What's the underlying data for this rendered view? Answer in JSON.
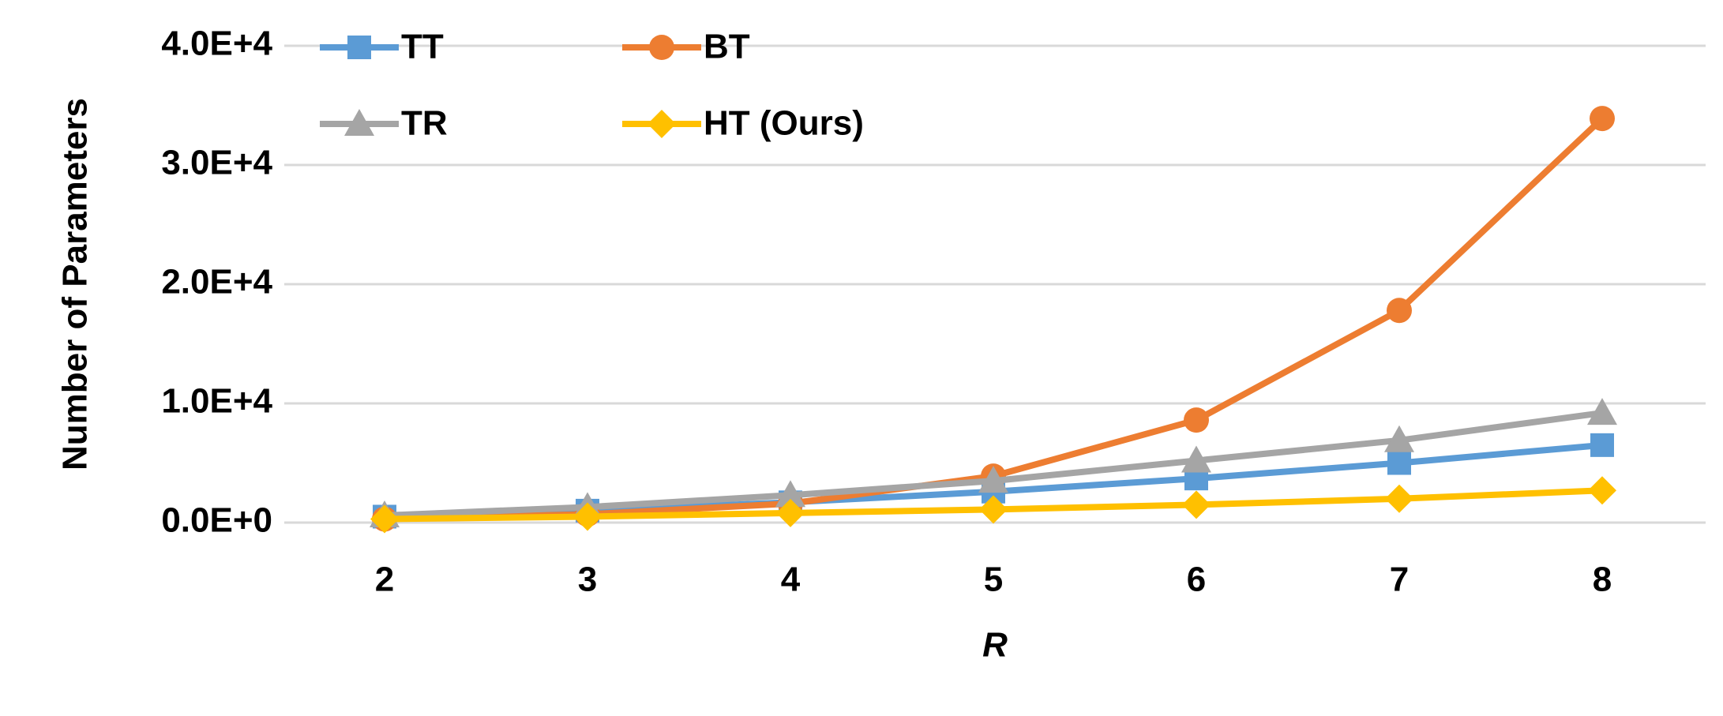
{
  "chart_data": {
    "type": "line",
    "xlabel": "R",
    "ylabel": "Number of Parameters",
    "categories": [
      "2",
      "3",
      "4",
      "5",
      "6",
      "7",
      "8"
    ],
    "series": [
      {
        "name": "TT",
        "color": "#5b9bd5",
        "marker": "square",
        "values": [
          500,
          1000,
          1700,
          2600,
          3700,
          5000,
          6500
        ]
      },
      {
        "name": "BT",
        "color": "#ed7d31",
        "marker": "circle",
        "values": [
          300,
          700,
          1600,
          3900,
          8600,
          17800,
          33900
        ]
      },
      {
        "name": "TR",
        "color": "#a5a5a5",
        "marker": "triangle",
        "values": [
          600,
          1300,
          2300,
          3500,
          5200,
          6900,
          9200
        ]
      },
      {
        "name": "HT (Ours)",
        "color": "#ffc000",
        "marker": "diamond",
        "values": [
          300,
          500,
          800,
          1100,
          1500,
          2000,
          2700
        ]
      }
    ],
    "ylim": [
      0,
      40000
    ],
    "yticks": [
      {
        "value": 0,
        "label": "0.0E+0"
      },
      {
        "value": 10000,
        "label": "1.0E+4"
      },
      {
        "value": 20000,
        "label": "2.0E+4"
      },
      {
        "value": 30000,
        "label": "3.0E+4"
      },
      {
        "value": 40000,
        "label": "4.0E+4"
      }
    ],
    "grid": true,
    "legend": "upper left"
  }
}
